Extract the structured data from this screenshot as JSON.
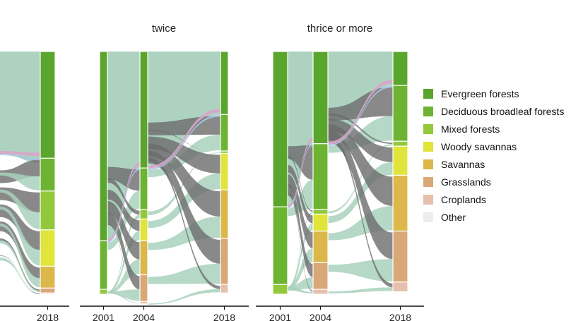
{
  "chart_data": {
    "type": "alluvial",
    "facets": [
      {
        "title": "",
        "years": [
          "2018"
        ]
      },
      {
        "title": "twice",
        "years": [
          "2001",
          "2004",
          "2018"
        ]
      },
      {
        "title": "thrice or more",
        "years": [
          "2001",
          "2004",
          "2018"
        ]
      }
    ],
    "legend": {
      "placement": "right",
      "items": [
        {
          "label": "Evergreen forests",
          "color": "#5aa62c"
        },
        {
          "label": "Deciduous broadleaf forests",
          "color": "#6cb432"
        },
        {
          "label": "Mixed forests",
          "color": "#93c83a"
        },
        {
          "label": "Woody savannas",
          "color": "#e1e43a"
        },
        {
          "label": "Savannas",
          "color": "#dcb84a"
        },
        {
          "label": "Grasslands",
          "color": "#d9a877"
        },
        {
          "label": "Croplands",
          "color": "#e6c0ad"
        },
        {
          "label": "Other",
          "color": "#ededed"
        }
      ]
    },
    "stratum_proportions": {
      "facet1_2018": [
        0.44,
        0.135,
        0.16,
        0.15,
        0.09,
        0.02,
        0.005
      ],
      "facet2_2001": [
        0.78,
        0.2,
        0.02
      ],
      "facet2_2004": [
        0.48,
        0.17,
        0.04,
        0.09,
        0.14,
        0.11,
        0.01
      ],
      "facet2_2018": [
        0.26,
        0.15,
        0.01,
        0.15,
        0.2,
        0.19,
        0.035
      ],
      "facet3_2001": [
        0.64,
        0.32,
        0.04
      ],
      "facet3_2004": [
        0.38,
        0.27,
        0.02,
        0.07,
        0.13,
        0.11,
        0.02
      ],
      "facet3_2018": [
        0.14,
        0.23,
        0.02,
        0.12,
        0.23,
        0.21,
        0.04
      ]
    },
    "flow_colors": {
      "stable": "#a9d1bd",
      "change": "#6b6b6b",
      "pink": "#d9a5c9",
      "blue": "#a6c4e6"
    }
  }
}
